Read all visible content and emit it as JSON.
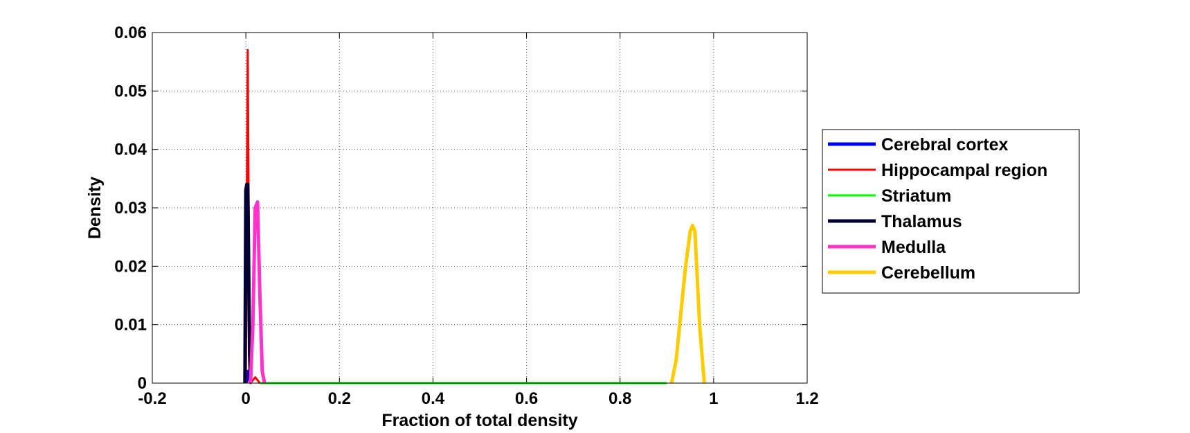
{
  "chart_data": {
    "type": "line",
    "x_label": "Fraction of total density",
    "y_label": "Density",
    "xlim": [
      -0.2,
      1.2
    ],
    "ylim": [
      0,
      0.06
    ],
    "xticks": [
      -0.2,
      0,
      0.2,
      0.4,
      0.6,
      0.8,
      1,
      1.2
    ],
    "yticks": [
      0,
      0.01,
      0.02,
      0.03,
      0.04,
      0.05,
      0.06
    ],
    "grid": true,
    "legend": "outside-right",
    "series": [
      {
        "name": "Cerebral cortex",
        "color": "#0000ff",
        "linewidth": 5,
        "x": [
          0,
          0.005,
          0.01
        ],
        "values": [
          0,
          0.002,
          0
        ]
      },
      {
        "name": "Hippocampal region",
        "color": "#ff0000",
        "linewidth": 3,
        "x": [
          0,
          0.002,
          0.004,
          0.006,
          0.008,
          0.01,
          0.02,
          0.03
        ],
        "values": [
          0,
          0.03,
          0.057,
          0.03,
          0.005,
          0,
          0.001,
          0
        ]
      },
      {
        "name": "Striatum",
        "color": "#00ff00",
        "linewidth": 3,
        "x": [
          0.03,
          0.9
        ],
        "values": [
          0,
          0
        ]
      },
      {
        "name": "Thalamus",
        "color": "#000033",
        "linewidth": 5,
        "x": [
          -0.002,
          0,
          0.002,
          0.004,
          0.006,
          0.008,
          0.01
        ],
        "values": [
          0,
          0.033,
          0.034,
          0.034,
          0.02,
          0.005,
          0
        ]
      },
      {
        "name": "Medulla",
        "color": "#ff33cc",
        "linewidth": 5,
        "x": [
          0.01,
          0.015,
          0.02,
          0.025,
          0.03,
          0.035,
          0.04
        ],
        "values": [
          0,
          0.01,
          0.03,
          0.031,
          0.015,
          0.002,
          0
        ]
      },
      {
        "name": "Cerebellum",
        "color": "#ffcc00",
        "linewidth": 5,
        "x": [
          0.91,
          0.92,
          0.93,
          0.94,
          0.95,
          0.955,
          0.96,
          0.97,
          0.98
        ],
        "values": [
          0,
          0.004,
          0.012,
          0.02,
          0.026,
          0.027,
          0.026,
          0.01,
          0
        ]
      }
    ]
  }
}
